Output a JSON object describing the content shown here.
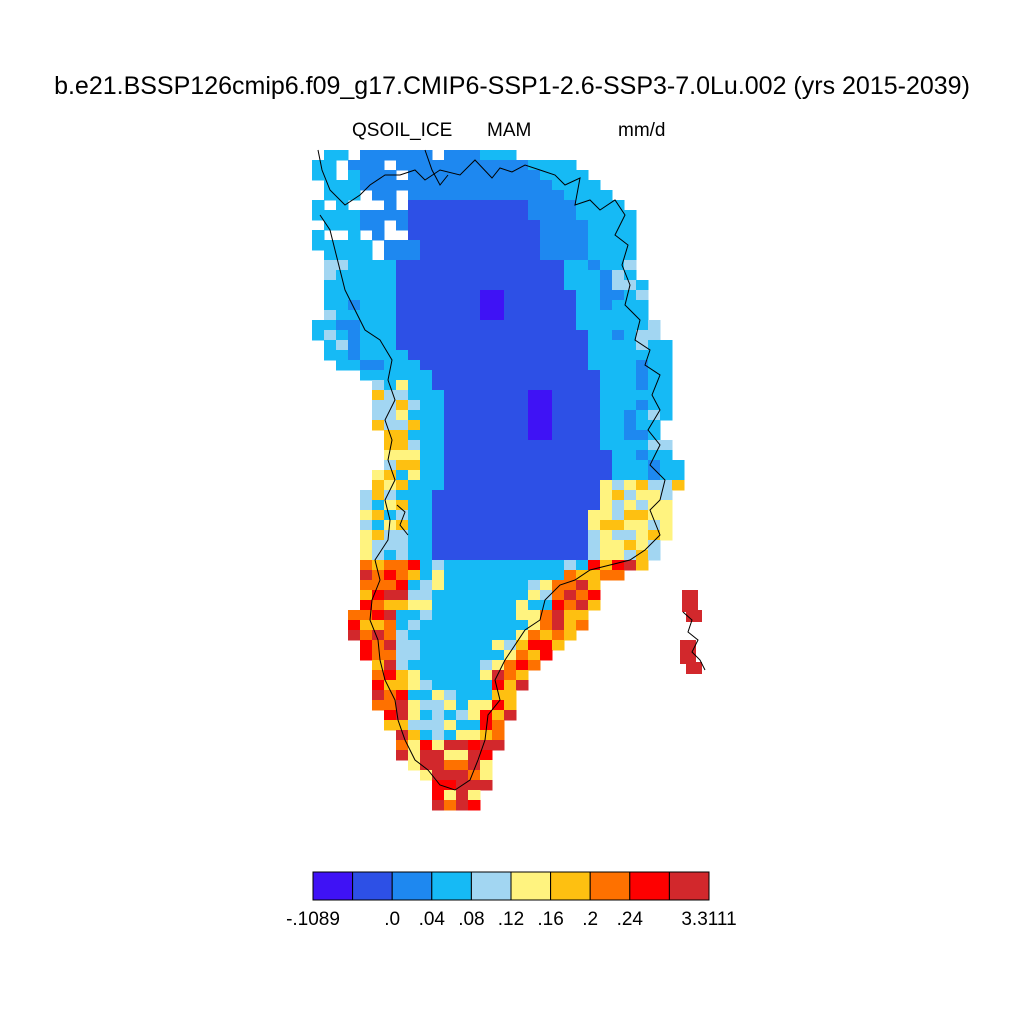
{
  "title": "b.e21.BSSP126cmip6.f09_g17.CMIP6-SSP1-2.6-SSP3-7.0Lu.002 (yrs 2015-2039)",
  "variable": "QSOIL_ICE",
  "season": "MAM",
  "units": "mm/d",
  "colorbar": {
    "colors": [
      "#3f12f5",
      "#2d50e6",
      "#1e88f0",
      "#16baf5",
      "#a2d6f2",
      "#fff37f",
      "#fec011",
      "#fe7100",
      "#fe0000",
      "#d2282c"
    ],
    "labels": [
      {
        "text": "-.1089",
        "edge": 0
      },
      {
        "text": ".0",
        "edge": 2
      },
      {
        "text": ".04",
        "edge": 3
      },
      {
        "text": ".08",
        "edge": 4
      },
      {
        "text": ".12",
        "edge": 5
      },
      {
        "text": ".16",
        "edge": 6
      },
      {
        "text": ".2",
        "edge": 7
      },
      {
        "text": ".24",
        "edge": 8
      },
      {
        "text": "3.3111",
        "edge": 10
      }
    ]
  }
}
